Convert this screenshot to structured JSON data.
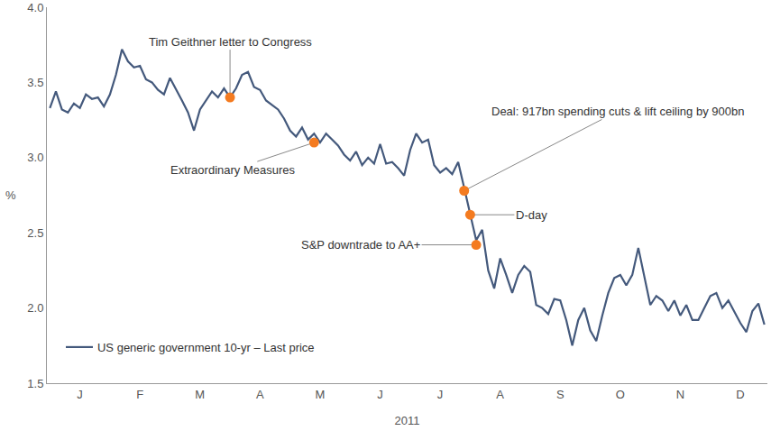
{
  "chart_data": {
    "type": "line",
    "x_label": "2011",
    "y_label": "%",
    "categories": [
      null,
      null,
      null,
      null,
      null,
      "J",
      null,
      null,
      null,
      null,
      null,
      null,
      null,
      null,
      null,
      "F",
      null,
      null,
      null,
      null,
      null,
      null,
      null,
      null,
      null,
      "M",
      null,
      null,
      null,
      null,
      null,
      null,
      null,
      null,
      null,
      "A",
      null,
      null,
      null,
      null,
      null,
      null,
      null,
      null,
      null,
      "M",
      null,
      null,
      null,
      null,
      null,
      null,
      null,
      null,
      null,
      "J",
      null,
      null,
      null,
      null,
      null,
      null,
      null,
      null,
      null,
      "J",
      null,
      null,
      null,
      null,
      null,
      null,
      null,
      null,
      null,
      "A",
      null,
      null,
      null,
      null,
      null,
      null,
      null,
      null,
      null,
      "S",
      null,
      null,
      null,
      null,
      null,
      null,
      null,
      null,
      null,
      "O",
      null,
      null,
      null,
      null,
      null,
      null,
      null,
      null,
      null,
      "N",
      null,
      null,
      null,
      null,
      null,
      null,
      null,
      null,
      null,
      "D",
      null,
      null,
      null,
      null
    ],
    "series": [
      {
        "name": "US generic government 10-yr – Last price",
        "color": "#44597c",
        "line_style": "solid",
        "values": [
          3.33,
          3.44,
          3.32,
          3.3,
          3.36,
          3.33,
          3.42,
          3.39,
          3.4,
          3.34,
          3.42,
          3.55,
          3.72,
          3.64,
          3.6,
          3.61,
          3.52,
          3.5,
          3.45,
          3.42,
          3.53,
          3.45,
          3.38,
          3.3,
          3.18,
          3.32,
          3.38,
          3.44,
          3.4,
          3.46,
          3.4,
          3.46,
          3.55,
          3.57,
          3.47,
          3.45,
          3.38,
          3.35,
          3.32,
          3.26,
          3.18,
          3.14,
          3.2,
          3.12,
          3.16,
          3.1,
          3.16,
          3.12,
          3.08,
          3.02,
          2.98,
          3.04,
          2.95,
          3.0,
          2.96,
          3.09,
          2.96,
          2.97,
          2.93,
          2.88,
          3.05,
          3.16,
          3.1,
          3.12,
          2.95,
          2.9,
          2.93,
          2.89,
          2.97,
          2.8,
          2.62,
          2.45,
          2.52,
          2.25,
          2.13,
          2.33,
          2.22,
          2.1,
          2.22,
          2.28,
          2.24,
          2.02,
          2.0,
          1.96,
          2.06,
          2.05,
          1.92,
          1.75,
          1.92,
          2.0,
          1.85,
          1.78,
          1.95,
          2.1,
          2.2,
          2.22,
          2.15,
          2.22,
          2.4,
          2.2,
          2.02,
          2.08,
          2.05,
          1.98,
          2.05,
          1.95,
          2.02,
          1.92,
          1.92,
          2.0,
          2.08,
          2.1,
          2.0,
          2.05,
          1.97,
          1.9,
          1.84,
          1.98,
          2.03,
          1.89
        ]
      }
    ],
    "annotations": [
      {
        "text": "Tim Geithner letter to Congress",
        "x": 30,
        "y": 3.4,
        "color": "#f47b20"
      },
      {
        "text": "Extraordinary Measures",
        "x": 44,
        "y": 3.1,
        "color": "#f47b20"
      },
      {
        "text": "Deal: 917bn spending cuts & lift ceiling by 900bn",
        "x": 69,
        "y": 2.78,
        "color": "#f47b20"
      },
      {
        "text": "D-day",
        "x": 70,
        "y": 2.62,
        "color": "#f47b20"
      },
      {
        "text": "S&P downtrade to AA+",
        "x": 71,
        "y": 2.42,
        "color": "#f47b20"
      }
    ],
    "ylim": [
      1.5,
      4.0
    ],
    "yticks": [
      1.5,
      {
        "value": 2,
        "label": "2.0"
      },
      2.5,
      {
        "value": 3,
        "label": "3.0"
      },
      3.5,
      {
        "value": 4,
        "label": "4.0"
      }
    ],
    "grid": false,
    "legend": "lower left"
  }
}
